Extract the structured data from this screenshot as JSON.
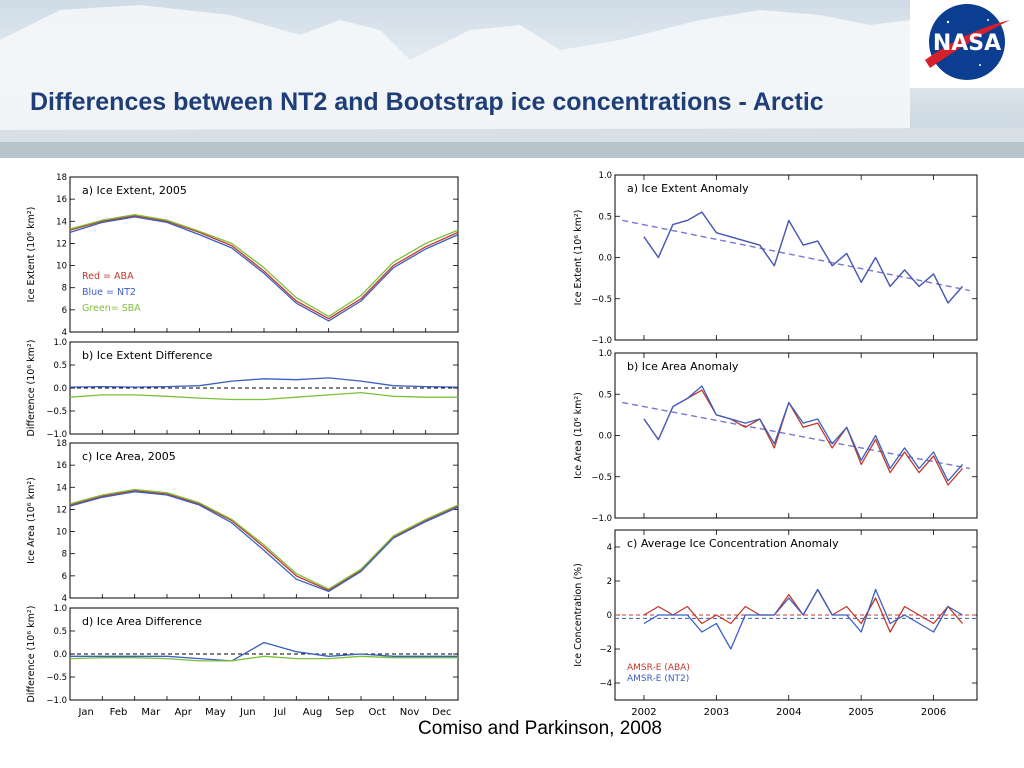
{
  "slide": {
    "title": "Differences between NT2 and Bootstrap ice concentrations - Arctic",
    "citation": "Comiso and Parkinson, 2008",
    "logo_text": "NASA"
  },
  "colors": {
    "aba": "#c0392b",
    "nt2": "#3b5fc2",
    "sba": "#7cbf3a",
    "trend": "#7878d0",
    "title": "#1f3e78"
  },
  "chart_data": [
    {
      "id": "left-a",
      "type": "line",
      "panel_label": "a) Ice Extent, 2005",
      "ylabel": "Ice Extent (10⁶ km²)",
      "ylim": [
        4,
        18
      ],
      "yticks": [
        4,
        6,
        8,
        10,
        12,
        14,
        16,
        18
      ],
      "x": [
        0,
        1,
        2,
        3,
        4,
        5,
        6,
        7,
        8,
        9,
        10,
        11,
        12
      ],
      "xticks": [
        "Jan",
        "Feb",
        "Mar",
        "Apr",
        "May",
        "Jun",
        "Jul",
        "Aug",
        "Sep",
        "Oct",
        "Nov",
        "Dec"
      ],
      "legend": [
        "Red   = ABA",
        "Blue = NT2",
        "Green= SBA"
      ],
      "series": [
        {
          "name": "ABA",
          "color": "#c0392b",
          "values": [
            13.2,
            14.0,
            14.5,
            14.0,
            13.0,
            11.8,
            9.5,
            6.8,
            5.2,
            7.0,
            10.0,
            11.7,
            13.0
          ]
        },
        {
          "name": "NT2",
          "color": "#3b5fc2",
          "values": [
            13.0,
            13.9,
            14.4,
            13.9,
            12.8,
            11.6,
            9.3,
            6.6,
            5.0,
            6.8,
            9.8,
            11.5,
            12.8
          ]
        },
        {
          "name": "SBA",
          "color": "#7cbf3a",
          "values": [
            13.3,
            14.1,
            14.6,
            14.1,
            13.1,
            12.0,
            9.8,
            7.1,
            5.4,
            7.3,
            10.3,
            12.0,
            13.2
          ]
        }
      ]
    },
    {
      "id": "left-b",
      "type": "line",
      "panel_label": "b) Ice Extent Difference",
      "ylabel": "Difference (10⁶ km²)",
      "ylim": [
        -1.0,
        1.0
      ],
      "yticks": [
        -1.0,
        -0.5,
        0.0,
        0.5,
        1.0
      ],
      "x": [
        0,
        1,
        2,
        3,
        4,
        5,
        6,
        7,
        8,
        9,
        10,
        11,
        12
      ],
      "zero_line": true,
      "series": [
        {
          "name": "NT2-ABA",
          "color": "#3b5fc2",
          "values": [
            0.02,
            0.03,
            0.02,
            0.03,
            0.05,
            0.15,
            0.2,
            0.18,
            0.22,
            0.15,
            0.05,
            0.03,
            0.02
          ]
        },
        {
          "name": "SBA-ABA",
          "color": "#7cbf3a",
          "values": [
            -0.2,
            -0.15,
            -0.15,
            -0.18,
            -0.22,
            -0.25,
            -0.25,
            -0.2,
            -0.15,
            -0.1,
            -0.18,
            -0.2,
            -0.2
          ]
        }
      ]
    },
    {
      "id": "left-c",
      "type": "line",
      "panel_label": "c) Ice Area, 2005",
      "ylabel": "Ice Area (10⁶ km²)",
      "ylim": [
        4,
        18
      ],
      "yticks": [
        4,
        6,
        8,
        10,
        12,
        14,
        16,
        18
      ],
      "x": [
        0,
        1,
        2,
        3,
        4,
        5,
        6,
        7,
        8,
        9,
        10,
        11,
        12
      ],
      "series": [
        {
          "name": "ABA",
          "color": "#c0392b",
          "values": [
            12.4,
            13.2,
            13.7,
            13.4,
            12.5,
            11.0,
            8.6,
            6.0,
            4.7,
            6.5,
            9.5,
            11.0,
            12.3
          ]
        },
        {
          "name": "NT2",
          "color": "#3b5fc2",
          "values": [
            12.3,
            13.1,
            13.6,
            13.3,
            12.4,
            10.8,
            8.3,
            5.7,
            4.6,
            6.4,
            9.4,
            10.9,
            12.2
          ]
        },
        {
          "name": "SBA",
          "color": "#7cbf3a",
          "values": [
            12.5,
            13.3,
            13.8,
            13.5,
            12.6,
            11.1,
            8.8,
            6.2,
            4.8,
            6.6,
            9.6,
            11.1,
            12.4
          ]
        }
      ]
    },
    {
      "id": "left-d",
      "type": "line",
      "panel_label": "d) Ice Area Difference",
      "ylabel": "Difference (10⁶ km²)",
      "ylim": [
        -1.0,
        1.0
      ],
      "yticks": [
        -1.0,
        -0.5,
        0.0,
        0.5,
        1.0
      ],
      "x": [
        0,
        1,
        2,
        3,
        4,
        5,
        6,
        7,
        8,
        9,
        10,
        11,
        12
      ],
      "zero_line": true,
      "series": [
        {
          "name": "NT2-ABA",
          "color": "#3b5fc2",
          "values": [
            -0.05,
            -0.05,
            -0.05,
            -0.05,
            -0.1,
            -0.15,
            0.25,
            0.05,
            -0.05,
            0.0,
            -0.05,
            -0.05,
            -0.05
          ]
        },
        {
          "name": "SBA-ABA",
          "color": "#7cbf3a",
          "values": [
            -0.1,
            -0.08,
            -0.08,
            -0.1,
            -0.15,
            -0.15,
            -0.05,
            -0.1,
            -0.1,
            -0.05,
            -0.08,
            -0.08,
            -0.08
          ]
        }
      ]
    },
    {
      "id": "right-a",
      "type": "line",
      "panel_label": "a) Ice Extent Anomaly",
      "ylabel": "Ice Extent (10⁶ km²)",
      "ylim": [
        -1.0,
        1.0
      ],
      "yticks": [
        -1.0,
        -0.5,
        0.0,
        0.5,
        1.0
      ],
      "xlim": [
        2001.6,
        2006.6
      ],
      "xticks": [
        2002,
        2003,
        2004,
        2005,
        2006
      ],
      "x": [
        2002.0,
        2002.2,
        2002.4,
        2002.6,
        2002.8,
        2003.0,
        2003.2,
        2003.4,
        2003.6,
        2003.8,
        2004.0,
        2004.2,
        2004.4,
        2004.6,
        2004.8,
        2005.0,
        2005.2,
        2005.4,
        2005.6,
        2005.8,
        2006.0,
        2006.2,
        2006.4
      ],
      "trend": [
        0.45,
        -0.4
      ],
      "series": [
        {
          "name": "ABA",
          "color": "#c0392b",
          "values": [
            0.25,
            0.0,
            0.4,
            0.45,
            0.55,
            0.3,
            0.25,
            0.2,
            0.15,
            -0.1,
            0.45,
            0.15,
            0.2,
            -0.1,
            0.05,
            -0.3,
            0.0,
            -0.35,
            -0.15,
            -0.35,
            -0.2,
            -0.55,
            -0.35
          ]
        },
        {
          "name": "NT2",
          "color": "#3b5fc2",
          "values": [
            0.25,
            0.0,
            0.4,
            0.45,
            0.55,
            0.3,
            0.25,
            0.2,
            0.15,
            -0.1,
            0.45,
            0.15,
            0.2,
            -0.1,
            0.05,
            -0.3,
            0.0,
            -0.35,
            -0.15,
            -0.35,
            -0.2,
            -0.55,
            -0.35
          ]
        }
      ]
    },
    {
      "id": "right-b",
      "type": "line",
      "panel_label": "b) Ice Area Anomaly",
      "ylabel": "Ice Area (10⁶ km²)",
      "ylim": [
        -1.0,
        1.0
      ],
      "yticks": [
        -1.0,
        -0.5,
        0.0,
        0.5,
        1.0
      ],
      "xlim": [
        2001.6,
        2006.6
      ],
      "xticks": [
        2002,
        2003,
        2004,
        2005,
        2006
      ],
      "x": [
        2002.0,
        2002.2,
        2002.4,
        2002.6,
        2002.8,
        2003.0,
        2003.2,
        2003.4,
        2003.6,
        2003.8,
        2004.0,
        2004.2,
        2004.4,
        2004.6,
        2004.8,
        2005.0,
        2005.2,
        2005.4,
        2005.6,
        2005.8,
        2006.0,
        2006.2,
        2006.4
      ],
      "trend": [
        0.4,
        -0.4
      ],
      "series": [
        {
          "name": "ABA",
          "color": "#c0392b",
          "values": [
            0.2,
            -0.05,
            0.35,
            0.45,
            0.55,
            0.25,
            0.2,
            0.1,
            0.2,
            -0.15,
            0.4,
            0.1,
            0.15,
            -0.15,
            0.1,
            -0.35,
            -0.05,
            -0.45,
            -0.2,
            -0.45,
            -0.25,
            -0.6,
            -0.4
          ]
        },
        {
          "name": "NT2",
          "color": "#3b5fc2",
          "values": [
            0.2,
            -0.05,
            0.35,
            0.45,
            0.6,
            0.25,
            0.2,
            0.15,
            0.2,
            -0.1,
            0.4,
            0.15,
            0.2,
            -0.1,
            0.1,
            -0.3,
            0.0,
            -0.4,
            -0.15,
            -0.4,
            -0.2,
            -0.55,
            -0.35
          ]
        }
      ]
    },
    {
      "id": "right-c",
      "type": "line",
      "panel_label": "c) Average Ice Concentration Anomaly",
      "ylabel": "Ice Concentration (%)",
      "ylim": [
        -5,
        5
      ],
      "yticks": [
        -4,
        -2,
        0,
        2,
        4
      ],
      "xlim": [
        2001.6,
        2006.6
      ],
      "xticks": [
        2002,
        2003,
        2004,
        2005,
        2006
      ],
      "x": [
        2002.0,
        2002.2,
        2002.4,
        2002.6,
        2002.8,
        2003.0,
        2003.2,
        2003.4,
        2003.6,
        2003.8,
        2004.0,
        2004.2,
        2004.4,
        2004.6,
        2004.8,
        2005.0,
        2005.2,
        2005.4,
        2005.6,
        2005.8,
        2006.0,
        2006.2,
        2006.4
      ],
      "zero_lines": [
        {
          "color": "#c0392b",
          "value": 0.0
        },
        {
          "color": "#3b5fc2",
          "value": -0.2
        }
      ],
      "legend": [
        "AMSR-E (ABA)",
        "AMSR-E (NT2)"
      ],
      "series": [
        {
          "name": "AMSR-E (ABA)",
          "color": "#c0392b",
          "values": [
            0.0,
            0.5,
            0.0,
            0.5,
            -0.5,
            0.0,
            -0.5,
            0.5,
            0.0,
            0.0,
            1.2,
            0.0,
            1.5,
            0.0,
            0.5,
            -0.5,
            1.0,
            -1.0,
            0.5,
            0.0,
            -0.5,
            0.5,
            -0.5
          ]
        },
        {
          "name": "AMSR-E (NT2)",
          "color": "#3b5fc2",
          "values": [
            -0.5,
            0.0,
            0.0,
            0.0,
            -1.0,
            -0.5,
            -2.0,
            0.0,
            0.0,
            0.0,
            1.0,
            0.0,
            1.5,
            0.0,
            0.0,
            -1.0,
            1.5,
            -0.5,
            0.0,
            -0.5,
            -1.0,
            0.5,
            0.0
          ]
        }
      ]
    }
  ]
}
